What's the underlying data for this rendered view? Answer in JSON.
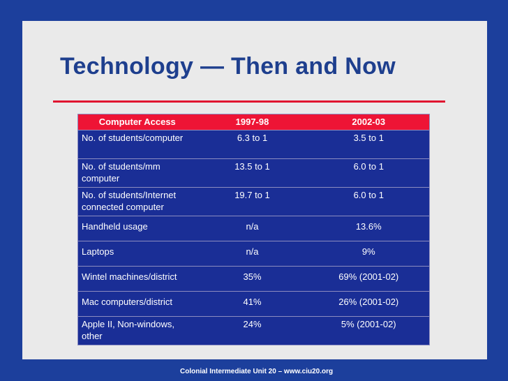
{
  "slide": {
    "title": "Technology — Then and Now",
    "footer": "Colonial Intermediate Unit 20 – www.ciu20.org"
  },
  "table": {
    "headers": [
      "Computer Access",
      "1997-98",
      "2002-03"
    ],
    "rows": [
      [
        "No. of students/computer",
        "6.3 to 1",
        "3.5 to 1"
      ],
      [
        "No. of students/mm computer",
        "13.5 to 1",
        "6.0 to 1"
      ],
      [
        "No. of students/Internet connected computer",
        "19.7 to 1",
        "6.0 to 1"
      ],
      [
        "Handheld usage",
        "n/a",
        "13.6%"
      ],
      [
        "Laptops",
        "n/a",
        "9%"
      ],
      [
        "Wintel machines/district",
        "35%",
        "69% (2001-02)"
      ],
      [
        "Mac computers/district",
        "41%",
        "26% (2001-02)"
      ],
      [
        "Apple II, Non-windows, other",
        "24%",
        "5% (2001-02)"
      ]
    ]
  },
  "colors": {
    "background": "#1c3f9c",
    "panel": "#eaeaea",
    "title": "#1e3f8e",
    "accent_red": "#e01430",
    "header_row": "#ee1435",
    "body_row": "#1a2e96"
  }
}
